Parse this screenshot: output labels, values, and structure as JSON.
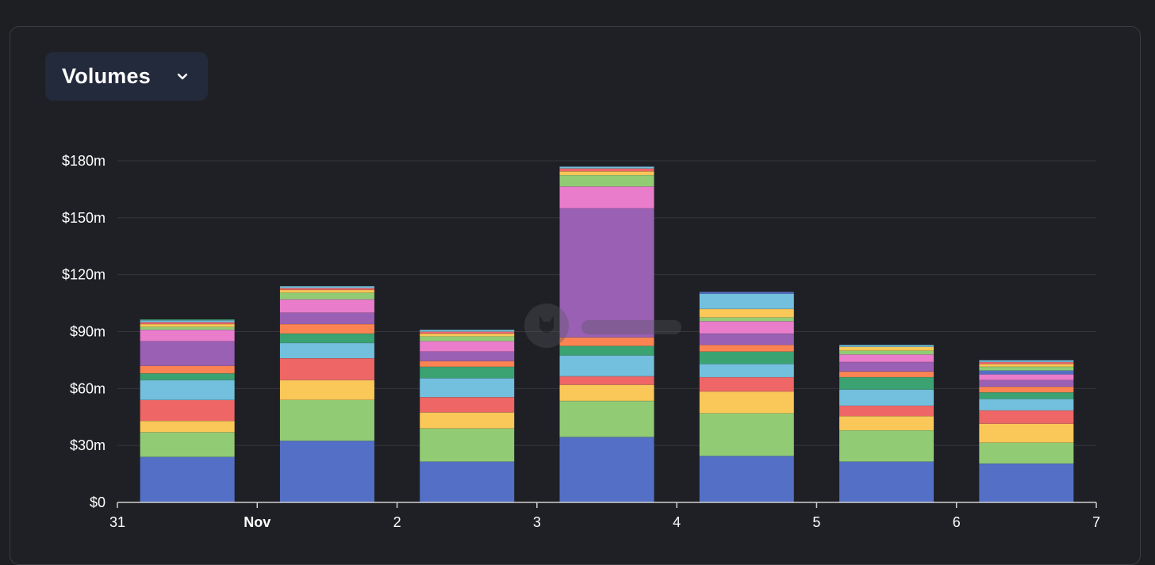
{
  "selector": {
    "label": "Volumes",
    "icon": "chevron-down-icon"
  },
  "chart_data": {
    "type": "bar",
    "stacked": true,
    "ylim": [
      0,
      180
    ],
    "y_ticks": [
      {
        "value": 0,
        "label": "$0"
      },
      {
        "value": 30,
        "label": "$30m"
      },
      {
        "value": 60,
        "label": "$60m"
      },
      {
        "value": 90,
        "label": "$90m"
      },
      {
        "value": 120,
        "label": "$120m"
      },
      {
        "value": 150,
        "label": "$150m"
      },
      {
        "value": 180,
        "label": "$180m"
      }
    ],
    "x_ticks": [
      {
        "label": "31",
        "bold": false
      },
      {
        "label": "Nov",
        "bold": true
      },
      {
        "label": "2",
        "bold": false
      },
      {
        "label": "3",
        "bold": false
      },
      {
        "label": "4",
        "bold": false
      },
      {
        "label": "5",
        "bold": false
      },
      {
        "label": "6",
        "bold": false
      },
      {
        "label": "7",
        "bold": false
      }
    ],
    "grid": true,
    "colors": {
      "background": "#1f2025",
      "grid": "#34363c",
      "axis": "#d0d0d0",
      "tick_text": "#ffffff"
    },
    "bars": [
      {
        "segments": [
          {
            "value": 24,
            "color": "#5470c6"
          },
          {
            "value": 13,
            "color": "#91cc75"
          },
          {
            "value": 6,
            "color": "#fac858"
          },
          {
            "value": 11,
            "color": "#ee6666"
          },
          {
            "value": 10.5,
            "color": "#73c0de"
          },
          {
            "value": 3.5,
            "color": "#3ba272"
          },
          {
            "value": 4,
            "color": "#fc8452"
          },
          {
            "value": 13,
            "color": "#9a60b4"
          },
          {
            "value": 6,
            "color": "#ea7ccc"
          },
          {
            "value": 1.5,
            "color": "#91cc75"
          },
          {
            "value": 1.5,
            "color": "#fac858"
          },
          {
            "value": 1,
            "color": "#ee6666"
          },
          {
            "value": 1,
            "color": "#73c0de"
          },
          {
            "value": 0.5,
            "color": "#3ba272"
          }
        ]
      },
      {
        "segments": [
          {
            "value": 32.5,
            "color": "#5470c6"
          },
          {
            "value": 21.5,
            "color": "#91cc75"
          },
          {
            "value": 10.5,
            "color": "#fac858"
          },
          {
            "value": 11.5,
            "color": "#ee6666"
          },
          {
            "value": 8,
            "color": "#73c0de"
          },
          {
            "value": 5,
            "color": "#3ba272"
          },
          {
            "value": 5,
            "color": "#fc8452"
          },
          {
            "value": 6,
            "color": "#9a60b4"
          },
          {
            "value": 7,
            "color": "#ea7ccc"
          },
          {
            "value": 3.5,
            "color": "#91cc75"
          },
          {
            "value": 1.5,
            "color": "#fac858"
          },
          {
            "value": 1,
            "color": "#ee6666"
          },
          {
            "value": 1,
            "color": "#73c0de"
          }
        ]
      },
      {
        "segments": [
          {
            "value": 21.5,
            "color": "#5470c6"
          },
          {
            "value": 17.5,
            "color": "#91cc75"
          },
          {
            "value": 8.5,
            "color": "#fac858"
          },
          {
            "value": 8,
            "color": "#ee6666"
          },
          {
            "value": 10,
            "color": "#73c0de"
          },
          {
            "value": 6,
            "color": "#3ba272"
          },
          {
            "value": 3,
            "color": "#fc8452"
          },
          {
            "value": 5,
            "color": "#9a60b4"
          },
          {
            "value": 5.5,
            "color": "#ea7ccc"
          },
          {
            "value": 2.5,
            "color": "#91cc75"
          },
          {
            "value": 1.5,
            "color": "#fac858"
          },
          {
            "value": 1,
            "color": "#ee6666"
          },
          {
            "value": 1,
            "color": "#73c0de"
          }
        ]
      },
      {
        "segments": [
          {
            "value": 34.5,
            "color": "#5470c6"
          },
          {
            "value": 19,
            "color": "#91cc75"
          },
          {
            "value": 8.5,
            "color": "#fac858"
          },
          {
            "value": 4.5,
            "color": "#ee6666"
          },
          {
            "value": 11,
            "color": "#73c0de"
          },
          {
            "value": 5,
            "color": "#3ba272"
          },
          {
            "value": 4.5,
            "color": "#fc8452"
          },
          {
            "value": 68,
            "color": "#9a60b4"
          },
          {
            "value": 11.5,
            "color": "#ea7ccc"
          },
          {
            "value": 6,
            "color": "#91cc75"
          },
          {
            "value": 2,
            "color": "#fac858"
          },
          {
            "value": 1.5,
            "color": "#ee6666"
          },
          {
            "value": 1,
            "color": "#73c0de"
          }
        ]
      },
      {
        "segments": [
          {
            "value": 24.5,
            "color": "#5470c6"
          },
          {
            "value": 22.5,
            "color": "#91cc75"
          },
          {
            "value": 11.5,
            "color": "#fac858"
          },
          {
            "value": 7.5,
            "color": "#ee6666"
          },
          {
            "value": 7,
            "color": "#73c0de"
          },
          {
            "value": 6.5,
            "color": "#3ba272"
          },
          {
            "value": 3.5,
            "color": "#fc8452"
          },
          {
            "value": 6,
            "color": "#9a60b4"
          },
          {
            "value": 6.5,
            "color": "#ea7ccc"
          },
          {
            "value": 2,
            "color": "#91cc75"
          },
          {
            "value": 4.5,
            "color": "#fac858"
          },
          {
            "value": 8,
            "color": "#73c0de"
          },
          {
            "value": 1,
            "color": "#5470c6"
          }
        ]
      },
      {
        "segments": [
          {
            "value": 21.5,
            "color": "#5470c6"
          },
          {
            "value": 16.5,
            "color": "#91cc75"
          },
          {
            "value": 7.5,
            "color": "#fac858"
          },
          {
            "value": 5.5,
            "color": "#ee6666"
          },
          {
            "value": 8.5,
            "color": "#73c0de"
          },
          {
            "value": 6.5,
            "color": "#3ba272"
          },
          {
            "value": 3,
            "color": "#fc8452"
          },
          {
            "value": 5,
            "color": "#9a60b4"
          },
          {
            "value": 4,
            "color": "#ea7ccc"
          },
          {
            "value": 2,
            "color": "#91cc75"
          },
          {
            "value": 2,
            "color": "#fac858"
          },
          {
            "value": 1,
            "color": "#73c0de"
          }
        ]
      },
      {
        "segments": [
          {
            "value": 20.5,
            "color": "#5470c6"
          },
          {
            "value": 11,
            "color": "#91cc75"
          },
          {
            "value": 10,
            "color": "#fac858"
          },
          {
            "value": 7,
            "color": "#ee6666"
          },
          {
            "value": 6,
            "color": "#73c0de"
          },
          {
            "value": 3.5,
            "color": "#3ba272"
          },
          {
            "value": 3,
            "color": "#fc8452"
          },
          {
            "value": 3.5,
            "color": "#9a60b4"
          },
          {
            "value": 3,
            "color": "#ea7ccc"
          },
          {
            "value": 2,
            "color": "#5470c6"
          },
          {
            "value": 2,
            "color": "#91cc75"
          },
          {
            "value": 1.5,
            "color": "#fac858"
          },
          {
            "value": 1,
            "color": "#ee6666"
          },
          {
            "value": 1,
            "color": "#73c0de"
          }
        ]
      }
    ]
  }
}
